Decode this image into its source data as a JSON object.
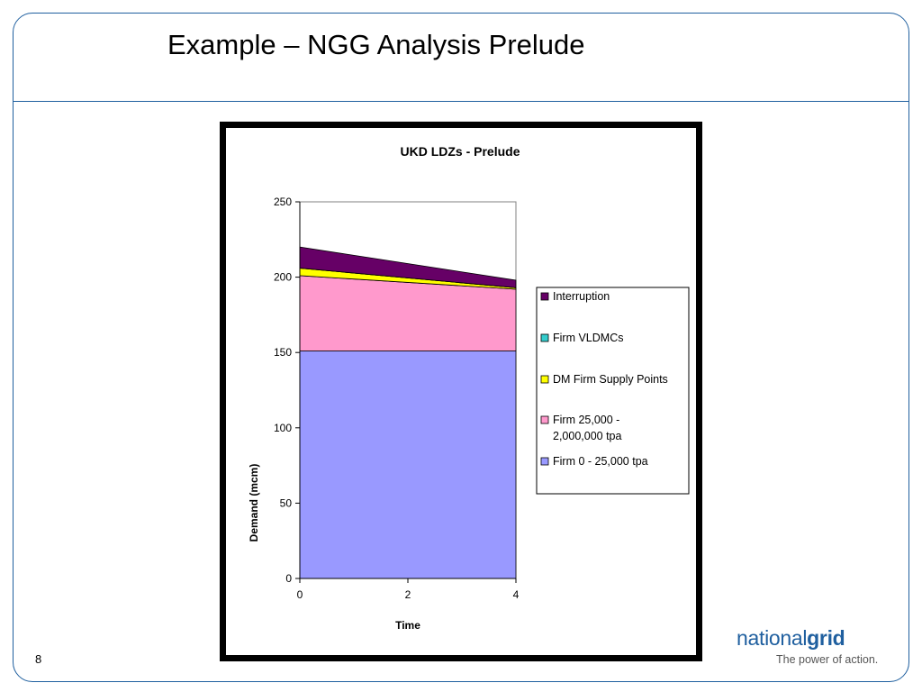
{
  "slide": {
    "title": "Example – NGG Analysis Prelude",
    "page_number": "8",
    "brand_light": "national",
    "brand_bold": "grid",
    "tagline": "The power of action."
  },
  "colors": {
    "frame": "#1f5f9f",
    "series": [
      "#9999ff",
      "#ff99cc",
      "#ffff00",
      "#33cccc",
      "#660066"
    ]
  },
  "chart_data": {
    "type": "area",
    "stacked": true,
    "title": "UKD LDZs - Prelude",
    "xlabel": "Time",
    "ylabel": "Demand (mcm)",
    "x": [
      0,
      4
    ],
    "x_ticks": [
      0,
      2,
      4
    ],
    "y_ticks": [
      0,
      50,
      100,
      150,
      200,
      250
    ],
    "xlim": [
      0,
      4
    ],
    "ylim": [
      0,
      250
    ],
    "legend_position": "right",
    "series": [
      {
        "name": "Firm 0 -  25,000 tpa",
        "values": [
          151,
          151
        ]
      },
      {
        "name": "Firm 25,000 - 2,000,000 tpa",
        "values": [
          50,
          41
        ]
      },
      {
        "name": "DM Firm Supply Points",
        "values": [
          5,
          1
        ]
      },
      {
        "name": "Firm VLDMCs",
        "values": [
          0,
          0
        ]
      },
      {
        "name": "Interruption",
        "values": [
          14,
          5
        ]
      }
    ],
    "legend_labels": [
      [
        "Interruption"
      ],
      [
        "Firm VLDMCs"
      ],
      [
        "DM Firm Supply Points"
      ],
      [
        "Firm 25,000 -",
        "2,000,000 tpa"
      ],
      [
        "Firm 0 -  25,000 tpa"
      ]
    ]
  }
}
